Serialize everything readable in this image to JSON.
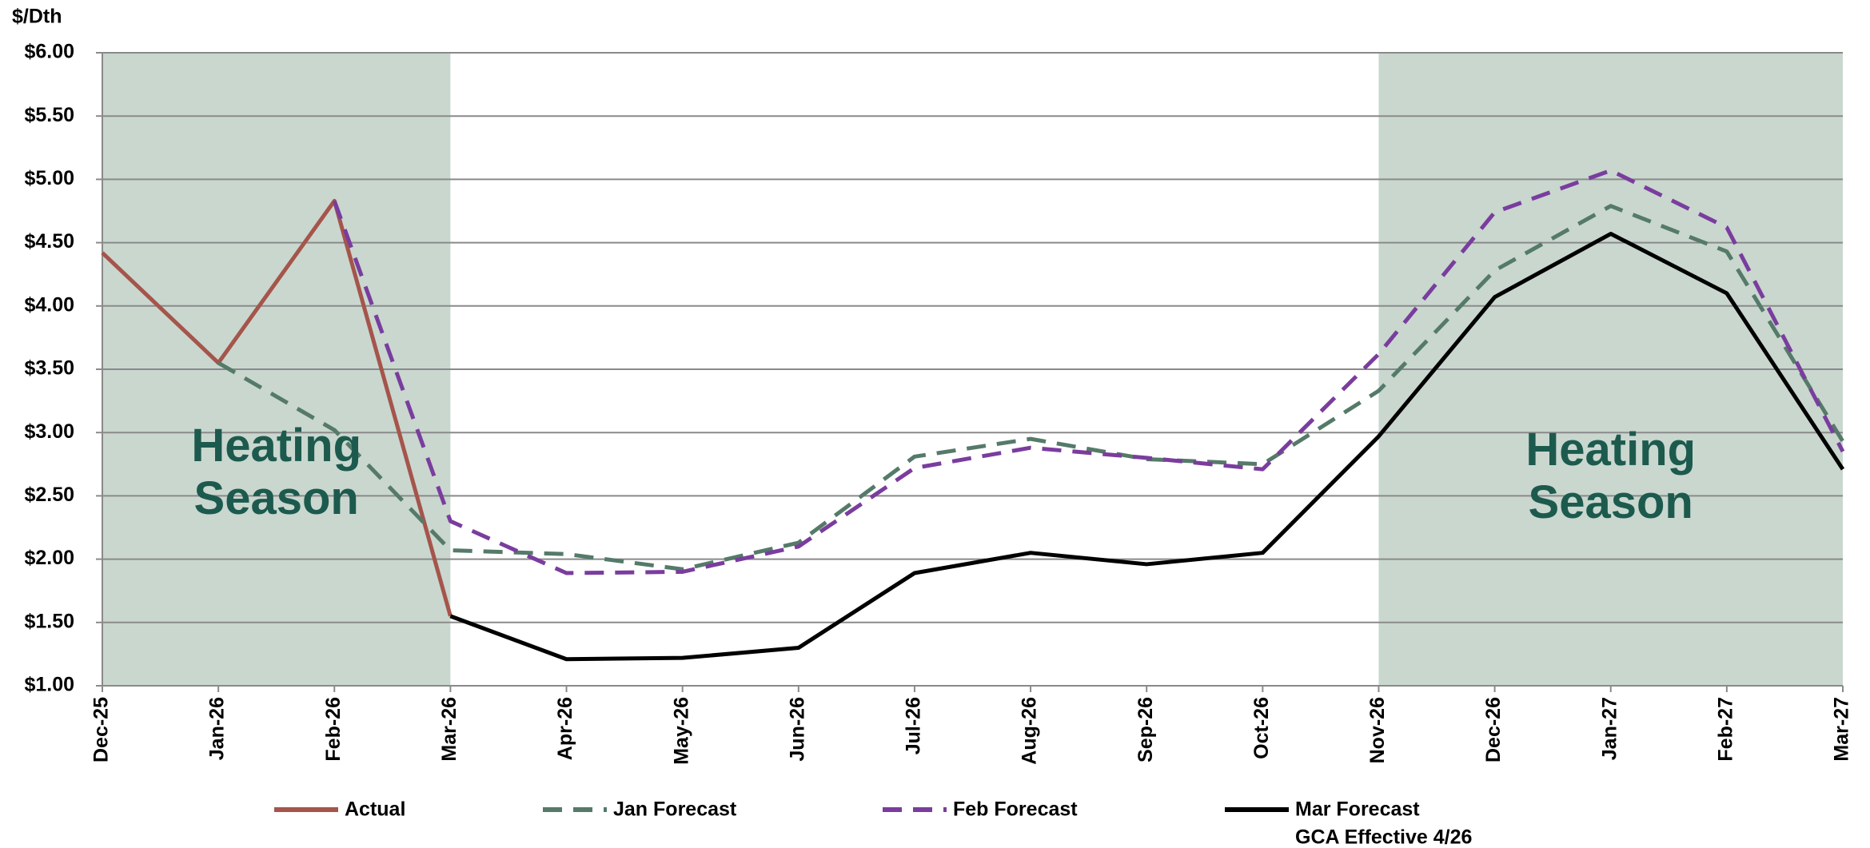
{
  "chart_data": {
    "type": "line",
    "y_axis_label": "$/Dth",
    "categories": [
      "Dec-25",
      "Jan-26",
      "Feb-26",
      "Mar-26",
      "Apr-26",
      "May-26",
      "Jun-26",
      "Jul-26",
      "Aug-26",
      "Sep-26",
      "Oct-26",
      "Nov-26",
      "Dec-26",
      "Jan-27",
      "Feb-27",
      "Mar-27"
    ],
    "series": [
      {
        "name": "Actual",
        "color": "#a5554b",
        "dashed": false,
        "values": [
          4.42,
          3.55,
          4.83,
          1.55,
          null,
          null,
          null,
          null,
          null,
          null,
          null,
          null,
          null,
          null,
          null,
          null
        ]
      },
      {
        "name": "Jan Forecast",
        "color": "#557a69",
        "dashed": true,
        "values": [
          null,
          3.55,
          3.02,
          2.07,
          2.04,
          1.92,
          2.13,
          2.81,
          2.95,
          2.79,
          2.75,
          3.33,
          4.28,
          4.79,
          4.43,
          2.93
        ]
      },
      {
        "name": "Feb Forecast",
        "color": "#7a3d9e",
        "dashed": true,
        "values": [
          null,
          null,
          4.83,
          2.3,
          1.89,
          1.9,
          2.1,
          2.72,
          2.88,
          2.8,
          2.71,
          3.62,
          4.74,
          5.07,
          4.62,
          2.85
        ]
      },
      {
        "name": "Mar Forecast",
        "note": "GCA Effective 4/26",
        "color": "#000000",
        "dashed": false,
        "values": [
          null,
          null,
          null,
          1.55,
          1.21,
          1.22,
          1.3,
          1.89,
          2.05,
          1.96,
          2.05,
          2.97,
          4.07,
          4.57,
          4.1,
          2.71
        ]
      }
    ],
    "shaded_regions": [
      {
        "from": "Dec-25",
        "to": "Mar-26",
        "label": "Heating Season",
        "color": "#c9d7cf"
      },
      {
        "from": "Nov-26",
        "to": "Mar-27",
        "label": "Heating Season",
        "color": "#c9d7cf"
      }
    ],
    "ylim": [
      1,
      6
    ],
    "yticks": [
      {
        "value": 1,
        "label": "$1.00"
      },
      {
        "value": 1.5,
        "label": "$1.50"
      },
      {
        "value": 2,
        "label": "$2.00"
      },
      {
        "value": 2.5,
        "label": "$2.50"
      },
      {
        "value": 3,
        "label": "$3.00"
      },
      {
        "value": 3.5,
        "label": "$3.50"
      },
      {
        "value": 4,
        "label": "$4.00"
      },
      {
        "value": 4.5,
        "label": "$4.50"
      },
      {
        "value": 5,
        "label": "$5.00"
      },
      {
        "value": 5.5,
        "label": "$5.50"
      },
      {
        "value": 6,
        "label": "$6.00"
      }
    ],
    "grid": true,
    "legend": "bottom"
  }
}
